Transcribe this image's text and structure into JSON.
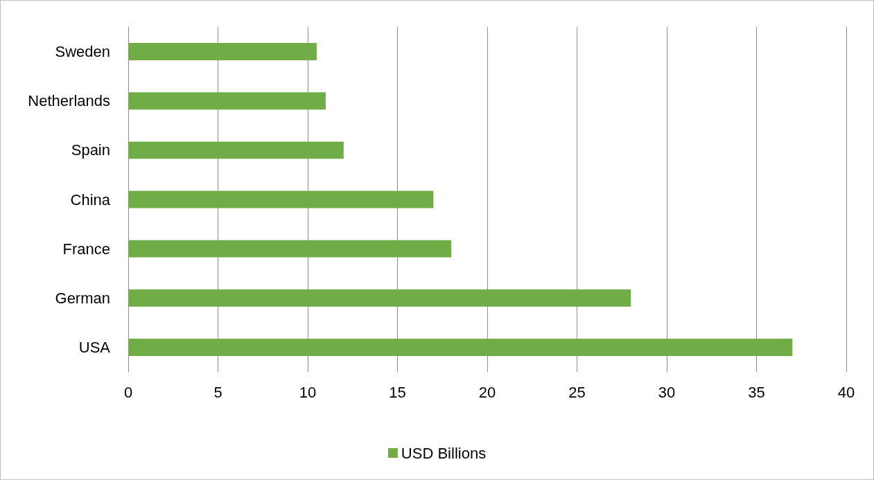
{
  "chart_data": {
    "type": "bar",
    "orientation": "horizontal",
    "categories": [
      "Sweden",
      "Netherlands",
      "Spain",
      "China",
      "France",
      "German",
      "USA"
    ],
    "series": [
      {
        "name": "USD Billions",
        "color": "#70ad47",
        "values": [
          10.5,
          11,
          12,
          17,
          18,
          28,
          37
        ]
      }
    ],
    "xlim": [
      0,
      40
    ],
    "xticks": [
      0,
      5,
      10,
      15,
      20,
      25,
      30,
      35,
      40
    ],
    "grid": "x",
    "legend": "bottom"
  }
}
